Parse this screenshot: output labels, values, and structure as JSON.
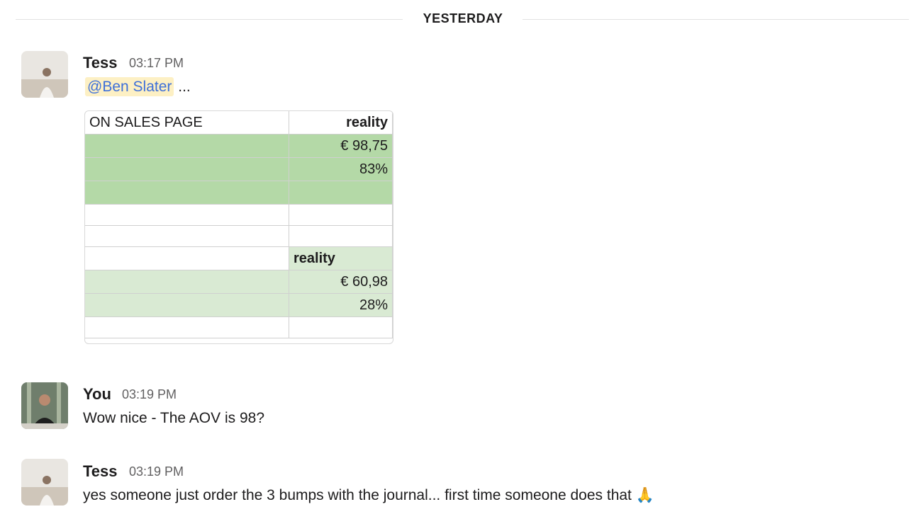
{
  "divider": "YESTERDAY",
  "messages": [
    {
      "author": "Tess",
      "time": "03:17 PM",
      "mention": "@Ben Slater",
      "text": "...",
      "attachment": {
        "title": "ON SALES PAGE",
        "heading_1": "reality",
        "values_1": [
          "€ 98,75",
          "83%"
        ],
        "heading_2": "reality",
        "values_2": [
          "€ 60,98",
          "28%"
        ]
      }
    },
    {
      "author": "You",
      "time": "03:19 PM",
      "text": "Wow nice - The AOV is 98?"
    },
    {
      "author": "Tess",
      "time": "03:19 PM",
      "text": "yes someone just order the 3 bumps with the journal... first time someone does that 🙏"
    }
  ]
}
